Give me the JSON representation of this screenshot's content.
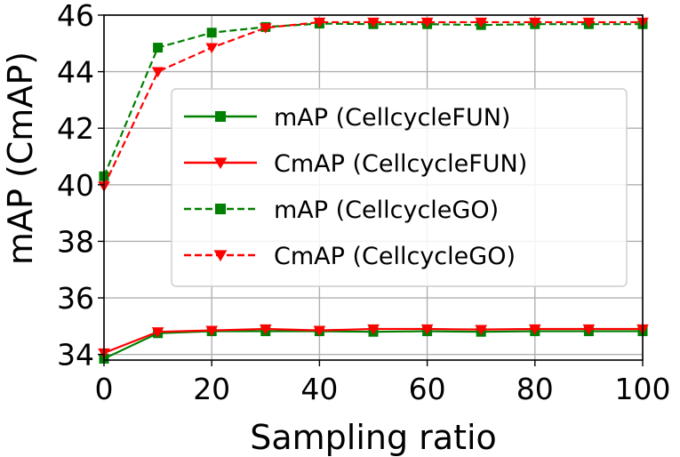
{
  "chart_data": {
    "type": "line",
    "title": "",
    "xlabel": "Sampling ratio",
    "ylabel": "mAP (CmAP)",
    "xlim": [
      0,
      100
    ],
    "ylim": [
      33.8,
      46
    ],
    "xticks": [
      0,
      20,
      40,
      60,
      80,
      100
    ],
    "yticks": [
      34,
      36,
      38,
      40,
      42,
      44,
      46
    ],
    "grid": true,
    "legend_position": "center-right",
    "x": [
      0,
      10,
      20,
      30,
      40,
      50,
      60,
      70,
      80,
      90,
      100
    ],
    "series": [
      {
        "name": "mAP (CellcycleFUN)",
        "color": "#008000",
        "marker": "square",
        "linestyle": "solid",
        "values": [
          33.85,
          34.75,
          34.82,
          34.82,
          34.82,
          34.8,
          34.82,
          34.8,
          34.82,
          34.82,
          34.82
        ]
      },
      {
        "name": "CmAP (CellcycleFUN)",
        "color": "#ff0000",
        "marker": "triangle-down",
        "linestyle": "solid",
        "values": [
          34.05,
          34.8,
          34.85,
          34.9,
          34.85,
          34.9,
          34.9,
          34.88,
          34.9,
          34.9,
          34.9
        ]
      },
      {
        "name": "mAP (CellcycleGO)",
        "color": "#008000",
        "marker": "square",
        "linestyle": "dashed",
        "values": [
          40.3,
          44.85,
          45.38,
          45.58,
          45.7,
          45.68,
          45.68,
          45.65,
          45.68,
          45.68,
          45.68
        ]
      },
      {
        "name": "CmAP (CellcycleGO)",
        "color": "#ff0000",
        "marker": "triangle-down",
        "linestyle": "dashed",
        "values": [
          39.95,
          44.0,
          44.85,
          45.55,
          45.75,
          45.75,
          45.75,
          45.75,
          45.75,
          45.75,
          45.75
        ]
      }
    ]
  }
}
